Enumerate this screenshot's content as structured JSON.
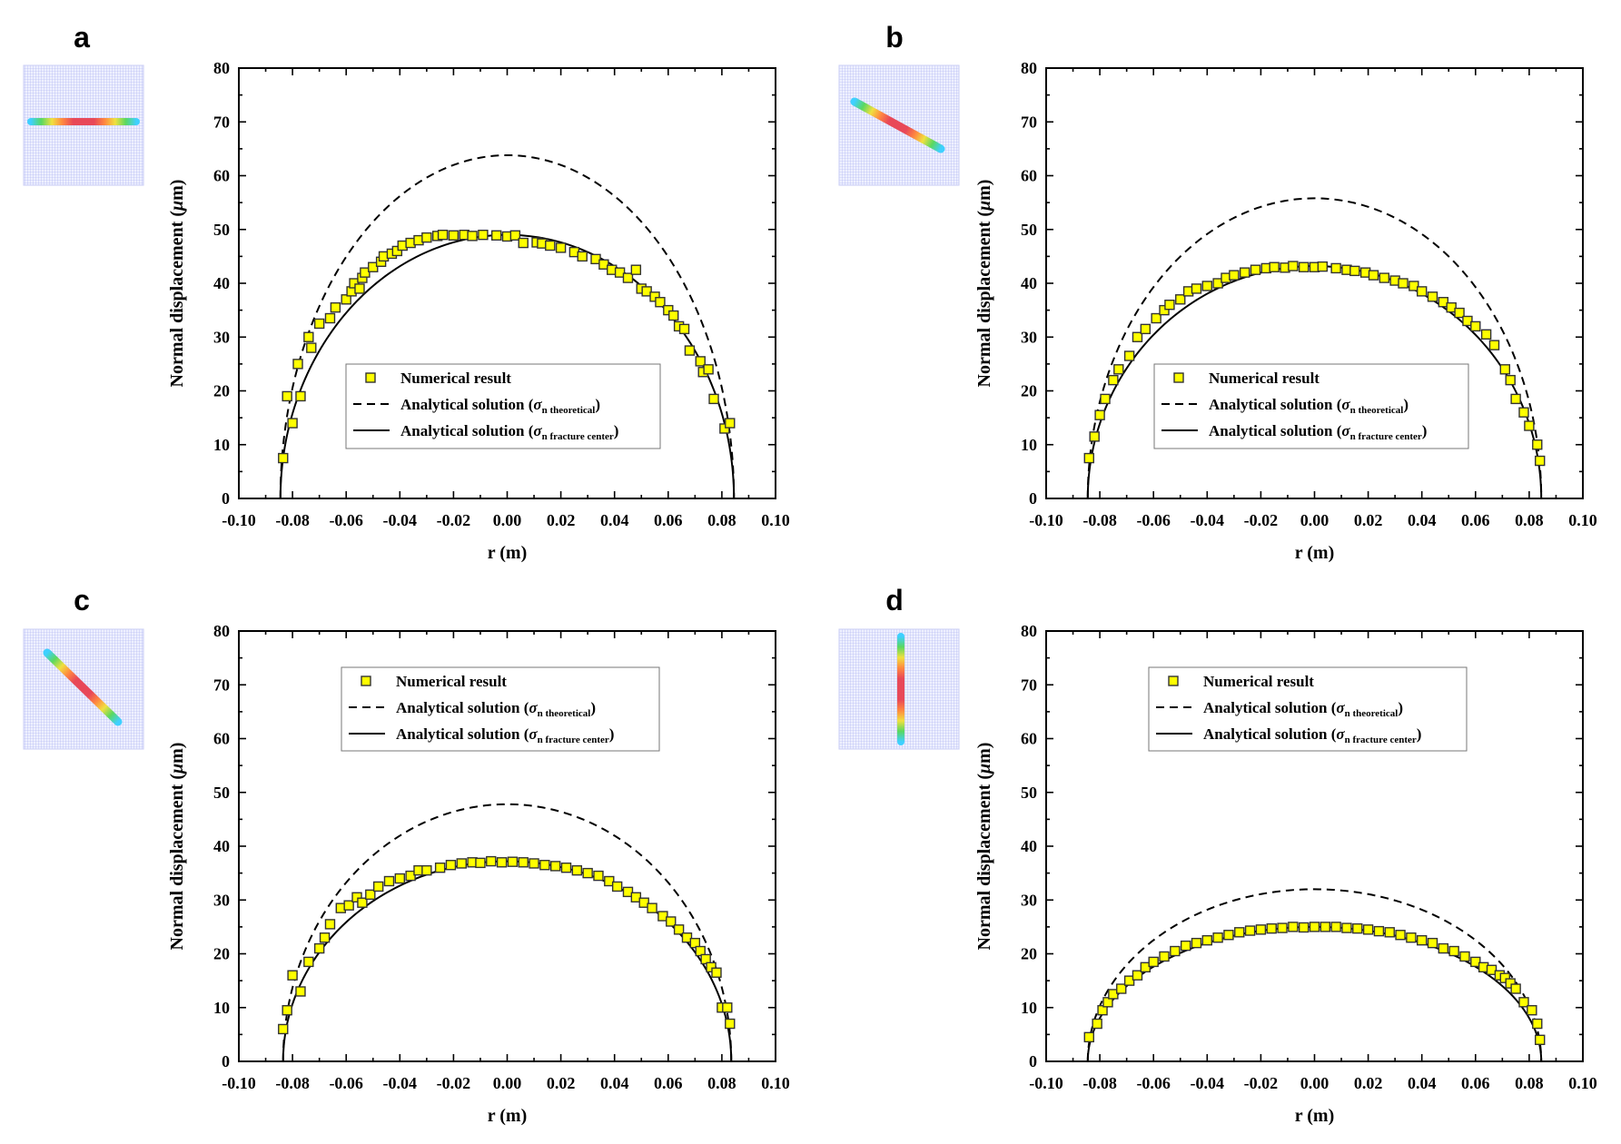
{
  "figure": {
    "theoretical_color": "#000000",
    "fracture_center_color": "#000000",
    "marker_fill": "#ffff00",
    "marker_stroke": "#333333",
    "fracture_color_ramp": [
      "#3fd0ff",
      "#5ad860",
      "#f0e040",
      "#ff8840",
      "#e84858"
    ],
    "inset_mesh_color": "#a8aef0"
  },
  "chart_data": [
    {
      "panel": "a",
      "type": "scatter",
      "fracture_orientation": "horizontal",
      "xlabel": "r (m)",
      "ylabel": "Normal displacement (μm)",
      "ylabel_parts": [
        "Normal displacement (",
        "μ",
        "m)"
      ],
      "xlim": [
        -0.1,
        0.1
      ],
      "ylim": [
        0,
        80
      ],
      "xticks": [
        "-0.10",
        "-0.08",
        "-0.06",
        "-0.04",
        "-0.02",
        "0.00",
        "0.02",
        "0.04",
        "0.06",
        "0.08",
        "0.10"
      ],
      "yticks": [
        "0",
        "10",
        "20",
        "30",
        "40",
        "50",
        "60",
        "70",
        "80"
      ],
      "legend_position": "lower-center",
      "legend": [
        {
          "kind": "marker",
          "text": "Numerical result"
        },
        {
          "kind": "dashed",
          "text": "Analytical solution (",
          "sym": "σ",
          "sub": "n theoretical",
          "close": ")"
        },
        {
          "kind": "solid",
          "text": "Analytical solution (",
          "sym": "σ",
          "sub": "n fracture center",
          "close": ")"
        }
      ],
      "series": [
        {
          "name": "Analytical solution (σn theoretical)",
          "style": "dashed",
          "half_length": 0.0845,
          "peak": 63.8
        },
        {
          "name": "Analytical solution (σn fracture center)",
          "style": "solid",
          "half_length": 0.0845,
          "peak": 49.0
        },
        {
          "name": "Numerical result",
          "style": "marker",
          "x": [
            -0.0835,
            -0.082,
            -0.08,
            -0.078,
            -0.077,
            -0.074,
            -0.073,
            -0.07,
            -0.066,
            -0.064,
            -0.06,
            -0.058,
            -0.057,
            -0.055,
            -0.054,
            -0.053,
            -0.05,
            -0.047,
            -0.046,
            -0.043,
            -0.041,
            -0.039,
            -0.036,
            -0.033,
            -0.03,
            -0.026,
            -0.024,
            -0.02,
            -0.016,
            -0.013,
            -0.009,
            -0.004,
            0.0,
            0.003,
            0.006,
            0.011,
            0.013,
            0.016,
            0.02,
            0.025,
            0.028,
            0.033,
            0.036,
            0.039,
            0.042,
            0.045,
            0.048,
            0.05,
            0.052,
            0.055,
            0.057,
            0.06,
            0.062,
            0.064,
            0.066,
            0.068,
            0.072,
            0.073,
            0.075,
            0.077,
            0.081,
            0.083
          ],
          "y": [
            7.5,
            19.0,
            14.0,
            25.0,
            19.0,
            30.0,
            28.0,
            32.5,
            33.5,
            35.5,
            37.0,
            38.5,
            40.0,
            39.0,
            41.0,
            42.0,
            43.0,
            44.0,
            45.0,
            45.5,
            46.0,
            47.0,
            47.5,
            48.0,
            48.5,
            48.8,
            49.0,
            48.9,
            49.0,
            48.8,
            49.0,
            48.9,
            48.7,
            48.9,
            47.5,
            47.6,
            47.4,
            47.0,
            46.6,
            45.8,
            45.0,
            44.5,
            43.5,
            42.5,
            42.0,
            41.0,
            42.5,
            39.0,
            38.5,
            37.5,
            36.5,
            35.0,
            34.0,
            32.0,
            31.5,
            27.5,
            25.5,
            23.5,
            24.0,
            18.5,
            13.0,
            14.0
          ]
        }
      ]
    },
    {
      "panel": "b",
      "type": "scatter",
      "fracture_orientation": "diagonal-down",
      "xlabel": "r (m)",
      "ylabel": "Normal displacement (μm)",
      "ylabel_parts": [
        "Normal displacement (",
        "μ",
        "m)"
      ],
      "xlim": [
        -0.1,
        0.1
      ],
      "ylim": [
        0,
        80
      ],
      "xticks": [
        "-0.10",
        "-0.08",
        "-0.06",
        "-0.04",
        "-0.02",
        "0.00",
        "0.02",
        "0.04",
        "0.06",
        "0.08",
        "0.10"
      ],
      "yticks": [
        "0",
        "10",
        "20",
        "30",
        "40",
        "50",
        "60",
        "70",
        "80"
      ],
      "legend_position": "lower-center",
      "legend": [
        {
          "kind": "marker",
          "text": "Numerical result"
        },
        {
          "kind": "dashed",
          "text": "Analytical solution (",
          "sym": "σ",
          "sub": "n theoretical",
          "close": ")"
        },
        {
          "kind": "solid",
          "text": "Analytical solution (",
          "sym": "σ",
          "sub": "n fracture center",
          "close": ")"
        }
      ],
      "series": [
        {
          "name": "Analytical solution (σn theoretical)",
          "style": "dashed",
          "half_length": 0.0845,
          "peak": 55.8
        },
        {
          "name": "Analytical solution (σn fracture center)",
          "style": "solid",
          "half_length": 0.0845,
          "peak": 43.2
        },
        {
          "name": "Numerical result",
          "style": "marker",
          "x": [
            -0.084,
            -0.082,
            -0.08,
            -0.078,
            -0.075,
            -0.073,
            -0.069,
            -0.066,
            -0.063,
            -0.059,
            -0.056,
            -0.054,
            -0.05,
            -0.047,
            -0.044,
            -0.04,
            -0.036,
            -0.033,
            -0.03,
            -0.026,
            -0.022,
            -0.018,
            -0.015,
            -0.011,
            -0.008,
            -0.004,
            0.0,
            0.003,
            0.008,
            0.012,
            0.015,
            0.019,
            0.022,
            0.026,
            0.03,
            0.033,
            0.037,
            0.04,
            0.044,
            0.048,
            0.051,
            0.054,
            0.057,
            0.06,
            0.064,
            0.067,
            0.071,
            0.073,
            0.075,
            0.078,
            0.08,
            0.083,
            0.084
          ],
          "y": [
            7.5,
            11.5,
            15.5,
            18.5,
            22.0,
            24.0,
            26.5,
            30.0,
            31.5,
            33.5,
            35.0,
            36.0,
            37.0,
            38.5,
            39.0,
            39.5,
            40.0,
            41.0,
            41.5,
            42.0,
            42.5,
            42.8,
            43.0,
            42.9,
            43.2,
            43.0,
            43.0,
            43.1,
            42.8,
            42.5,
            42.3,
            42.0,
            41.5,
            41.0,
            40.5,
            40.0,
            39.5,
            38.5,
            37.5,
            36.5,
            35.5,
            34.5,
            33.0,
            32.0,
            30.5,
            28.5,
            24.0,
            22.0,
            18.5,
            16.0,
            13.5,
            10.0,
            7.0
          ]
        }
      ]
    },
    {
      "panel": "c",
      "type": "scatter",
      "fracture_orientation": "diagonal-steep",
      "xlabel": "r (m)",
      "ylabel": "Normal displacement (μm)",
      "ylabel_parts": [
        "Normal displacement (",
        "μ",
        "m)"
      ],
      "xlim": [
        -0.1,
        0.1
      ],
      "ylim": [
        0,
        80
      ],
      "xticks": [
        "-0.10",
        "-0.08",
        "-0.06",
        "-0.04",
        "-0.02",
        "0.00",
        "0.02",
        "0.04",
        "0.06",
        "0.08",
        "0.10"
      ],
      "yticks": [
        "0",
        "10",
        "20",
        "30",
        "40",
        "50",
        "60",
        "70",
        "80"
      ],
      "legend_position": "upper-center",
      "legend": [
        {
          "kind": "marker",
          "text": "Numerical result"
        },
        {
          "kind": "dashed",
          "text": "Analytical solution (",
          "sym": "σ",
          "sub": "n theoretical",
          "close": ")"
        },
        {
          "kind": "solid",
          "text": "Analytical solution (",
          "sym": "σ",
          "sub": "n fracture center",
          "close": ")"
        }
      ],
      "series": [
        {
          "name": "Analytical solution (σn theoretical)",
          "style": "dashed",
          "half_length": 0.0835,
          "peak": 47.8
        },
        {
          "name": "Analytical solution (σn fracture center)",
          "style": "solid",
          "half_length": 0.0835,
          "peak": 37.2
        },
        {
          "name": "Numerical result",
          "style": "marker",
          "x": [
            -0.0835,
            -0.082,
            -0.08,
            -0.077,
            -0.074,
            -0.07,
            -0.068,
            -0.066,
            -0.062,
            -0.059,
            -0.056,
            -0.054,
            -0.051,
            -0.048,
            -0.044,
            -0.04,
            -0.036,
            -0.033,
            -0.03,
            -0.025,
            -0.021,
            -0.017,
            -0.013,
            -0.01,
            -0.006,
            -0.002,
            0.002,
            0.006,
            0.01,
            0.014,
            0.018,
            0.022,
            0.026,
            0.03,
            0.034,
            0.038,
            0.041,
            0.045,
            0.048,
            0.051,
            0.054,
            0.058,
            0.061,
            0.064,
            0.067,
            0.07,
            0.072,
            0.074,
            0.076,
            0.078,
            0.08,
            0.082,
            0.083
          ],
          "y": [
            6.0,
            9.5,
            16.0,
            13.0,
            18.5,
            21.0,
            23.0,
            25.5,
            28.5,
            29.0,
            30.5,
            29.5,
            31.0,
            32.5,
            33.5,
            34.0,
            34.5,
            35.5,
            35.5,
            36.0,
            36.5,
            36.8,
            37.0,
            36.9,
            37.2,
            37.0,
            37.1,
            37.0,
            36.8,
            36.5,
            36.3,
            36.0,
            35.5,
            35.0,
            34.5,
            33.5,
            32.5,
            31.5,
            30.5,
            29.5,
            28.5,
            27.0,
            26.0,
            24.5,
            23.0,
            22.0,
            20.5,
            19.0,
            17.5,
            16.5,
            10.0,
            10.0,
            7.0
          ]
        }
      ]
    },
    {
      "panel": "d",
      "type": "scatter",
      "fracture_orientation": "vertical",
      "xlabel": "r (m)",
      "ylabel": "Normal displacement (μm)",
      "ylabel_parts": [
        "Normal displacement (",
        "μ",
        "m)"
      ],
      "xlim": [
        -0.1,
        0.1
      ],
      "ylim": [
        0,
        80
      ],
      "xticks": [
        "-0.10",
        "-0.08",
        "-0.06",
        "-0.04",
        "-0.02",
        "0.00",
        "0.02",
        "0.04",
        "0.06",
        "0.08",
        "0.10"
      ],
      "yticks": [
        "0",
        "10",
        "20",
        "30",
        "40",
        "50",
        "60",
        "70",
        "80"
      ],
      "legend_position": "upper-center",
      "legend": [
        {
          "kind": "marker",
          "text": "Numerical result"
        },
        {
          "kind": "dashed",
          "text": "Analytical solution (",
          "sym": "σ",
          "sub": "n theoretical",
          "close": ")"
        },
        {
          "kind": "solid",
          "text": "Analytical solution (",
          "sym": "σ",
          "sub": "n fracture center",
          "close": ")"
        }
      ],
      "series": [
        {
          "name": "Analytical solution (σn theoretical)",
          "style": "dashed",
          "half_length": 0.0845,
          "peak": 32.0
        },
        {
          "name": "Analytical solution (σn fracture center)",
          "style": "solid",
          "half_length": 0.0845,
          "peak": 25.0
        },
        {
          "name": "Numerical result",
          "style": "marker",
          "x": [
            -0.084,
            -0.081,
            -0.079,
            -0.077,
            -0.075,
            -0.072,
            -0.069,
            -0.066,
            -0.063,
            -0.06,
            -0.056,
            -0.052,
            -0.048,
            -0.044,
            -0.04,
            -0.036,
            -0.032,
            -0.028,
            -0.024,
            -0.02,
            -0.016,
            -0.012,
            -0.008,
            -0.004,
            0.0,
            0.004,
            0.008,
            0.012,
            0.016,
            0.02,
            0.024,
            0.028,
            0.032,
            0.036,
            0.04,
            0.044,
            0.048,
            0.052,
            0.056,
            0.06,
            0.063,
            0.066,
            0.069,
            0.071,
            0.073,
            0.075,
            0.078,
            0.081,
            0.083,
            0.084
          ],
          "y": [
            4.5,
            7.0,
            9.5,
            11.0,
            12.5,
            13.5,
            15.0,
            16.0,
            17.5,
            18.5,
            19.5,
            20.5,
            21.5,
            22.0,
            22.5,
            23.0,
            23.5,
            24.0,
            24.3,
            24.5,
            24.7,
            24.8,
            25.0,
            24.9,
            25.0,
            25.0,
            25.0,
            24.8,
            24.7,
            24.5,
            24.2,
            24.0,
            23.5,
            23.0,
            22.5,
            22.0,
            21.0,
            20.5,
            19.5,
            18.5,
            17.5,
            17.0,
            16.0,
            15.5,
            14.5,
            13.5,
            11.0,
            9.5,
            7.0,
            4.0
          ]
        }
      ]
    }
  ]
}
